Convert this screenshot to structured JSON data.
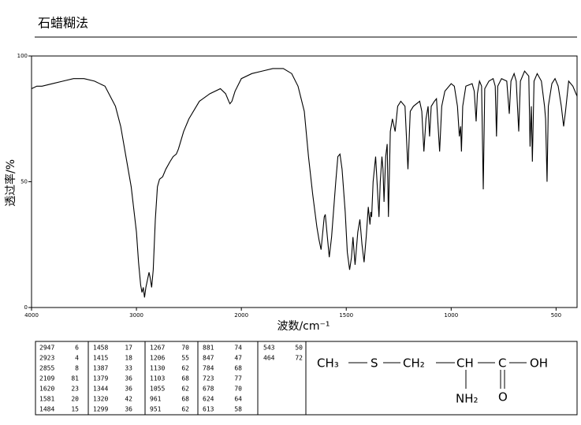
{
  "chart_data": {
    "type": "line",
    "title": "石蜡糊法",
    "x_label": "波数/cm⁻¹",
    "y_label": "透过率/%",
    "xlim": [
      4000,
      400
    ],
    "xticks": [
      4000,
      3000,
      2000,
      1500,
      1000,
      500
    ],
    "ylim": [
      0,
      100
    ],
    "yticks": [
      0,
      50,
      100
    ],
    "grid": false,
    "color": "#000000",
    "x": [
      4000,
      3950,
      3900,
      3800,
      3700,
      3600,
      3500,
      3400,
      3300,
      3200,
      3150,
      3100,
      3050,
      3000,
      2980,
      2960,
      2947,
      2935,
      2923,
      2910,
      2890,
      2880,
      2870,
      2855,
      2840,
      2820,
      2800,
      2780,
      2750,
      2720,
      2680,
      2650,
      2620,
      2600,
      2550,
      2500,
      2400,
      2300,
      2200,
      2150,
      2120,
      2109,
      2090,
      2060,
      2000,
      1950,
      1900,
      1850,
      1800,
      1760,
      1730,
      1700,
      1680,
      1660,
      1640,
      1630,
      1620,
      1605,
      1600,
      1590,
      1581,
      1570,
      1550,
      1540,
      1530,
      1520,
      1505,
      1495,
      1484,
      1475,
      1468,
      1460,
      1458,
      1445,
      1435,
      1425,
      1415,
      1405,
      1395,
      1387,
      1383,
      1379,
      1372,
      1360,
      1350,
      1344,
      1338,
      1330,
      1325,
      1320,
      1312,
      1305,
      1299,
      1290,
      1280,
      1267,
      1255,
      1240,
      1220,
      1206,
      1195,
      1180,
      1150,
      1140,
      1130,
      1120,
      1110,
      1103,
      1095,
      1080,
      1070,
      1055,
      1045,
      1030,
      1000,
      985,
      970,
      961,
      955,
      951,
      945,
      930,
      900,
      890,
      881,
      875,
      865,
      855,
      847,
      840,
      820,
      800,
      790,
      784,
      778,
      760,
      735,
      723,
      715,
      700,
      690,
      678,
      670,
      650,
      630,
      624,
      618,
      613,
      605,
      590,
      570,
      555,
      550,
      543,
      537,
      520,
      505,
      490,
      475,
      464,
      455,
      440,
      420,
      400
    ],
    "values": [
      87,
      88,
      88,
      89,
      90,
      91,
      91,
      90,
      88,
      80,
      72,
      60,
      48,
      30,
      18,
      9,
      6,
      8,
      4,
      8,
      12,
      14,
      12,
      8,
      15,
      35,
      48,
      51,
      52,
      55,
      58,
      60,
      61,
      63,
      70,
      75,
      82,
      85,
      87,
      85,
      82,
      81,
      82,
      86,
      91,
      93,
      94,
      95,
      95,
      93,
      88,
      78,
      60,
      45,
      32,
      27,
      23,
      36,
      37,
      28,
      20,
      28,
      50,
      60,
      61,
      55,
      38,
      22,
      15,
      20,
      28,
      19,
      17,
      30,
      35,
      25,
      18,
      28,
      40,
      33,
      38,
      36,
      50,
      60,
      45,
      36,
      50,
      60,
      55,
      42,
      60,
      65,
      36,
      70,
      75,
      70,
      80,
      82,
      80,
      55,
      78,
      80,
      82,
      78,
      62,
      75,
      80,
      68,
      80,
      82,
      83,
      62,
      80,
      86,
      89,
      88,
      80,
      68,
      72,
      62,
      80,
      88,
      89,
      86,
      74,
      85,
      90,
      88,
      47,
      87,
      90,
      91,
      88,
      68,
      88,
      91,
      90,
      77,
      90,
      93,
      90,
      70,
      90,
      94,
      92,
      64,
      80,
      58,
      90,
      93,
      90,
      80,
      75,
      50,
      80,
      89,
      91,
      88,
      80,
      72,
      78,
      90,
      88,
      84
    ]
  },
  "peak_table": {
    "columns": [
      [
        [
          2947,
          6
        ],
        [
          2923,
          4
        ],
        [
          2855,
          8
        ],
        [
          2109,
          81
        ],
        [
          1620,
          23
        ],
        [
          1581,
          20
        ],
        [
          1484,
          15
        ]
      ],
      [
        [
          1458,
          17
        ],
        [
          1415,
          18
        ],
        [
          1387,
          33
        ],
        [
          1379,
          36
        ],
        [
          1344,
          36
        ],
        [
          1320,
          42
        ],
        [
          1299,
          36
        ]
      ],
      [
        [
          1267,
          70
        ],
        [
          1206,
          55
        ],
        [
          1130,
          62
        ],
        [
          1103,
          68
        ],
        [
          1055,
          62
        ],
        [
          961,
          68
        ],
        [
          951,
          62
        ]
      ],
      [
        [
          881,
          74
        ],
        [
          847,
          47
        ],
        [
          784,
          68
        ],
        [
          723,
          77
        ],
        [
          678,
          70
        ],
        [
          624,
          64
        ],
        [
          613,
          58
        ]
      ],
      [
        [
          543,
          50
        ],
        [
          464,
          72
        ]
      ]
    ]
  },
  "structure": {
    "atoms": [
      "CH₃",
      "S",
      "CH₂",
      "CH",
      "C",
      "OH",
      "NH₂",
      "O"
    ]
  }
}
